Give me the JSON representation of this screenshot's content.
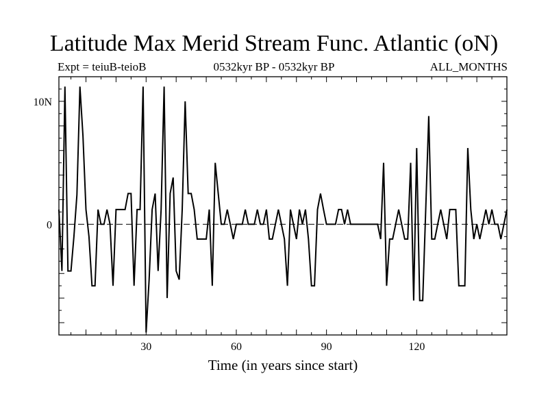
{
  "chart_data": {
    "type": "line",
    "title": "Latitude Max Merid Stream Func. Atlantic (oN)",
    "subtitle_left": "Expt = teiuB-teioB",
    "subtitle_center": "0532kyr BP - 0532kyr BP",
    "subtitle_right": "ALL_MONTHS",
    "xlabel": "Time (in years since start)",
    "ylabel": "",
    "xlim": [
      1,
      150
    ],
    "ylim": [
      -9,
      12
    ],
    "x_ticks": [
      30,
      60,
      90,
      120
    ],
    "x_tick_labels": [
      "30",
      "60",
      "90",
      "120"
    ],
    "y_ticks": [
      0,
      10
    ],
    "y_tick_labels": [
      "0",
      "10N"
    ],
    "zero_line": "dashed",
    "grid": false,
    "series": [
      {
        "name": "latitude max",
        "x": [
          1,
          2,
          3,
          4,
          5,
          6,
          7,
          8,
          9,
          10,
          11,
          12,
          13,
          14,
          15,
          16,
          17,
          18,
          19,
          20,
          21,
          22,
          23,
          24,
          25,
          26,
          27,
          28,
          29,
          30,
          31,
          32,
          33,
          34,
          35,
          36,
          37,
          38,
          39,
          40,
          41,
          42,
          43,
          44,
          45,
          46,
          47,
          48,
          49,
          50,
          51,
          52,
          53,
          54,
          55,
          56,
          57,
          58,
          59,
          60,
          61,
          62,
          63,
          64,
          65,
          66,
          67,
          68,
          69,
          70,
          71,
          72,
          73,
          74,
          75,
          76,
          77,
          78,
          79,
          80,
          81,
          82,
          83,
          84,
          85,
          86,
          87,
          88,
          89,
          90,
          91,
          92,
          93,
          94,
          95,
          96,
          97,
          98,
          99,
          100,
          101,
          102,
          103,
          104,
          105,
          106,
          107,
          108,
          109,
          110,
          111,
          112,
          113,
          114,
          115,
          116,
          117,
          118,
          119,
          120,
          121,
          122,
          123,
          124,
          125,
          126,
          127,
          128,
          129,
          130,
          131,
          132,
          133,
          134,
          135,
          136,
          137,
          138,
          139,
          140,
          141,
          142,
          143,
          144,
          145,
          146,
          147,
          148,
          149,
          150
        ],
        "values": [
          1.2,
          -3.8,
          11.2,
          -3.8,
          -3.8,
          -1,
          2.4,
          11.2,
          7.2,
          1.2,
          -1,
          -5,
          -5,
          1.2,
          0,
          0,
          1.2,
          0,
          -5,
          1.2,
          1.2,
          1.2,
          1.2,
          2.5,
          2.5,
          -5,
          1.2,
          1.2,
          11.2,
          -8.8,
          -4.5,
          1.2,
          2.5,
          -3.8,
          1.2,
          11.2,
          -6,
          2.5,
          3.8,
          -3.8,
          -4.5,
          1.2,
          10,
          2.5,
          2.5,
          1.2,
          -1.2,
          -1.2,
          -1.2,
          -1.2,
          1.2,
          -5,
          5,
          2.5,
          0,
          0,
          1.2,
          0,
          -1.2,
          0,
          0,
          0,
          1.2,
          0,
          0,
          0,
          1.2,
          0,
          0,
          1.2,
          -1.2,
          -1.2,
          0,
          1.2,
          0,
          -1.2,
          -5,
          1.2,
          0,
          -1.2,
          1.2,
          0,
          1.2,
          -1.2,
          -5,
          -5,
          1.2,
          2.5,
          1.2,
          0,
          0,
          0,
          0,
          1.2,
          1.2,
          0,
          1.2,
          0,
          0,
          0,
          0,
          0,
          0,
          0,
          0,
          0,
          0,
          -1.2,
          5,
          -5,
          -1.2,
          -1.2,
          0,
          1.2,
          0,
          -1.2,
          -1.2,
          5,
          -6.2,
          6.2,
          -6.2,
          -6.2,
          1.2,
          8.8,
          -1.2,
          -1.2,
          0,
          1.2,
          0,
          -1.2,
          1.2,
          1.2,
          1.2,
          -5,
          -5,
          -5,
          6.2,
          1.2,
          -1.2,
          0,
          -1.2,
          0,
          1.2,
          0,
          1.2,
          0,
          0,
          -1.2,
          0,
          1.2
        ]
      }
    ]
  }
}
